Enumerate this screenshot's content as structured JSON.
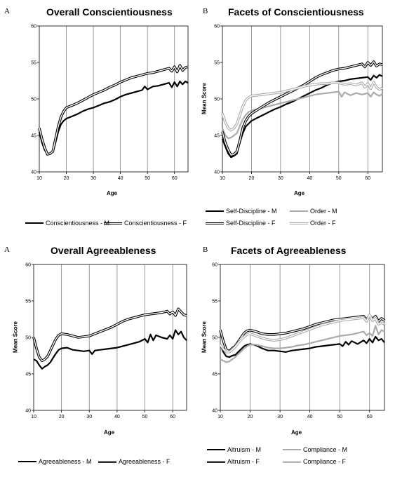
{
  "colors": {
    "male": "#000000",
    "female": "#000000",
    "male_gray": "#aaaaaa",
    "female_gray": "#aaaaaa",
    "grid": "#808080"
  },
  "chart_data": [
    {
      "panel_label": "A",
      "type": "line",
      "title": "Overall Conscientiousness",
      "xlabel": "Age",
      "ylabel": "",
      "xlim": [
        10,
        65
      ],
      "ylim": [
        40,
        60
      ],
      "xticks": [
        "10",
        "20",
        "30",
        "40",
        "50",
        "60"
      ],
      "yticks": [
        "40",
        "45",
        "50",
        "55",
        "60"
      ],
      "grid": "vertical",
      "legend_position": "bottom",
      "series": [
        {
          "name": "Conscientiousness - M",
          "style": "solid-black",
          "x": [
            10,
            11,
            12,
            13,
            14,
            15,
            16,
            17,
            18,
            19,
            20,
            22,
            24,
            26,
            28,
            30,
            32,
            34,
            36,
            38,
            40,
            42,
            44,
            46,
            48,
            49,
            50,
            52,
            54,
            56,
            58,
            59,
            60,
            61,
            62,
            63,
            64,
            65
          ],
          "y": [
            45.5,
            44,
            43,
            42.4,
            42.5,
            42.7,
            44,
            45.5,
            46.5,
            47,
            47.3,
            47.6,
            47.9,
            48.3,
            48.6,
            48.8,
            49.1,
            49.4,
            49.6,
            49.9,
            50.3,
            50.6,
            50.8,
            51.0,
            51.2,
            51.7,
            51.3,
            51.7,
            51.8,
            52.0,
            52.2,
            51.6,
            52.3,
            51.7,
            52.4,
            52.0,
            52.4,
            52.2
          ]
        },
        {
          "name": "Conscientiousness - F",
          "style": "double-black",
          "x": [
            10,
            11,
            12,
            13,
            14,
            15,
            16,
            17,
            18,
            19,
            20,
            22,
            24,
            26,
            28,
            30,
            32,
            34,
            36,
            38,
            40,
            42,
            44,
            46,
            48,
            50,
            52,
            54,
            56,
            58,
            59,
            60,
            61,
            62,
            63,
            64,
            65
          ],
          "y": [
            46,
            44.5,
            43.3,
            42.4,
            42.5,
            42.8,
            44.5,
            46.2,
            47.5,
            48.3,
            48.8,
            49.1,
            49.4,
            49.8,
            50.2,
            50.6,
            50.9,
            51.2,
            51.6,
            51.9,
            52.3,
            52.6,
            52.9,
            53.1,
            53.3,
            53.5,
            53.6,
            53.8,
            54.0,
            54.2,
            53.8,
            54.4,
            53.7,
            54.6,
            53.9,
            54.3,
            54.4
          ]
        }
      ]
    },
    {
      "panel_label": "B",
      "type": "line",
      "title": "Facets of Conscientiousness",
      "xlabel": "Age",
      "ylabel": "Mean Score",
      "xlim": [
        10,
        65
      ],
      "ylim": [
        40,
        60
      ],
      "xticks": [
        "10",
        "20",
        "30",
        "40",
        "50",
        "60"
      ],
      "yticks": [
        "40",
        "45",
        "50",
        "55",
        "60"
      ],
      "grid": "vertical",
      "legend_position": "bottom",
      "series": [
        {
          "name": "Self-Discipline - M",
          "style": "solid-black",
          "x": [
            10,
            11,
            12,
            13,
            14,
            15,
            16,
            17,
            18,
            19,
            20,
            22,
            24,
            26,
            28,
            30,
            32,
            34,
            36,
            38,
            40,
            42,
            44,
            46,
            48,
            50,
            52,
            54,
            56,
            58,
            60,
            61,
            62,
            63,
            64,
            65
          ],
          "y": [
            44.5,
            43.5,
            42.5,
            42,
            42.2,
            42.5,
            44,
            45.3,
            46.2,
            46.6,
            47,
            47.4,
            47.8,
            48.2,
            48.6,
            48.9,
            49.3,
            49.6,
            50.0,
            50.4,
            50.8,
            51.2,
            51.5,
            51.9,
            52.2,
            52.4,
            52.5,
            52.7,
            52.8,
            52.9,
            53.0,
            52.6,
            53.2,
            52.9,
            53.3,
            53.1
          ]
        },
        {
          "name": "Order - M",
          "style": "solid-gray",
          "x": [
            10,
            11,
            12,
            13,
            14,
            15,
            16,
            17,
            18,
            19,
            20,
            22,
            24,
            26,
            28,
            30,
            32,
            34,
            36,
            38,
            40,
            42,
            44,
            46,
            48,
            50,
            51,
            52,
            54,
            56,
            58,
            60,
            61,
            62,
            63,
            64,
            65
          ],
          "y": [
            46,
            45,
            44.6,
            44.7,
            45,
            45.3,
            46.3,
            47.2,
            47.8,
            48.2,
            48.4,
            48.6,
            48.8,
            49.0,
            49.2,
            49.4,
            49.6,
            49.8,
            50.0,
            50.2,
            50.4,
            50.6,
            50.7,
            50.8,
            50.9,
            51.0,
            50.3,
            50.9,
            50.5,
            50.8,
            50.6,
            50.8,
            50.3,
            50.9,
            50.6,
            50.4,
            50.7
          ]
        },
        {
          "name": "Self-Discipline - F",
          "style": "double-black",
          "x": [
            10,
            11,
            12,
            13,
            14,
            15,
            16,
            17,
            18,
            19,
            20,
            22,
            24,
            26,
            28,
            30,
            32,
            34,
            36,
            38,
            40,
            42,
            44,
            46,
            48,
            50,
            52,
            54,
            56,
            58,
            59,
            60,
            61,
            62,
            63,
            64,
            65
          ],
          "y": [
            45.5,
            44,
            43,
            42.3,
            42.4,
            42.8,
            44.3,
            46,
            47,
            47.6,
            48,
            48.5,
            49,
            49.5,
            49.9,
            50.3,
            50.7,
            51.1,
            51.5,
            51.9,
            52.4,
            52.9,
            53.3,
            53.6,
            53.9,
            54.1,
            54.2,
            54.4,
            54.6,
            54.8,
            54.4,
            55.0,
            54.6,
            55.1,
            54.5,
            54.8,
            54.7
          ]
        },
        {
          "name": "Order - F",
          "style": "double-gray",
          "x": [
            10,
            11,
            12,
            13,
            14,
            15,
            16,
            17,
            18,
            19,
            20,
            22,
            24,
            26,
            28,
            30,
            32,
            34,
            36,
            38,
            40,
            42,
            44,
            46,
            48,
            50,
            52,
            54,
            56,
            58,
            59,
            60,
            61,
            62,
            63,
            64,
            65
          ],
          "y": [
            48,
            46.8,
            46,
            45.7,
            46,
            46.6,
            47.8,
            49,
            49.8,
            50.2,
            50.4,
            50.5,
            50.6,
            50.7,
            50.8,
            50.9,
            51.1,
            51.3,
            51.5,
            51.7,
            51.9,
            52.0,
            52.1,
            52.1,
            52.2,
            52.2,
            52.0,
            52.1,
            51.9,
            52.2,
            51.6,
            52.1,
            51.4,
            52.3,
            51.6,
            51.3,
            51.5
          ]
        }
      ]
    },
    {
      "panel_label": "A",
      "type": "line",
      "title": "Overall Agreeableness",
      "xlabel": "Age",
      "ylabel": "Mean Score",
      "xlim": [
        10,
        65
      ],
      "ylim": [
        40,
        60
      ],
      "xticks": [
        "10",
        "20",
        "30",
        "40",
        "50",
        "60"
      ],
      "yticks": [
        "40",
        "45",
        "50",
        "55",
        "60"
      ],
      "grid": "vertical",
      "legend_position": "bottom",
      "series": [
        {
          "name": "Agreeableness - M",
          "style": "solid-black",
          "x": [
            10,
            11,
            12,
            13,
            14,
            15,
            16,
            17,
            18,
            19,
            20,
            22,
            24,
            26,
            28,
            30,
            31,
            32,
            34,
            36,
            38,
            40,
            42,
            44,
            46,
            48,
            50,
            51,
            52,
            53,
            54,
            56,
            58,
            59,
            60,
            61,
            62,
            63,
            64,
            65
          ],
          "y": [
            47,
            46.8,
            46.2,
            45.7,
            46,
            46.2,
            46.6,
            47.2,
            47.8,
            48.3,
            48.5,
            48.6,
            48.3,
            48.2,
            48.1,
            48.2,
            47.7,
            48.2,
            48.3,
            48.4,
            48.5,
            48.6,
            48.8,
            49.0,
            49.2,
            49.4,
            49.8,
            49.3,
            50.4,
            49.6,
            50.3,
            50.0,
            49.8,
            50.3,
            49.8,
            51.0,
            50.4,
            50.8,
            50.0,
            49.6
          ]
        },
        {
          "name": "Agreeableness - F",
          "style": "double-black",
          "x": [
            10,
            11,
            12,
            13,
            14,
            15,
            16,
            17,
            18,
            19,
            20,
            22,
            24,
            26,
            28,
            30,
            32,
            34,
            36,
            38,
            40,
            42,
            44,
            46,
            48,
            50,
            52,
            54,
            56,
            58,
            59,
            60,
            61,
            62,
            63,
            64,
            65
          ],
          "y": [
            50,
            48.5,
            47.3,
            46.8,
            47,
            47.4,
            48.2,
            49,
            49.8,
            50.3,
            50.5,
            50.4,
            50.2,
            50.0,
            50.1,
            50.2,
            50.5,
            50.8,
            51.1,
            51.4,
            51.8,
            52.2,
            52.5,
            52.7,
            52.9,
            53.1,
            53.2,
            53.3,
            53.4,
            53.6,
            53.2,
            53.5,
            53.0,
            53.9,
            53.5,
            53.1,
            53.0
          ]
        }
      ]
    },
    {
      "panel_label": "B",
      "type": "line",
      "title": "Facets of Agreeableness",
      "xlabel": "Age",
      "ylabel": "Mean Score",
      "xlim": [
        10,
        65
      ],
      "ylim": [
        40,
        60
      ],
      "xticks": [
        "10",
        "20",
        "30",
        "40",
        "50",
        "60"
      ],
      "yticks": [
        "40",
        "45",
        "50",
        "55",
        "60"
      ],
      "grid": "vertical",
      "legend_position": "bottom",
      "series": [
        {
          "name": "Altruism - M",
          "style": "solid-black",
          "x": [
            10,
            11,
            12,
            13,
            14,
            15,
            16,
            17,
            18,
            19,
            20,
            22,
            24,
            26,
            28,
            30,
            32,
            34,
            36,
            38,
            40,
            42,
            44,
            46,
            48,
            50,
            51,
            52,
            53,
            54,
            56,
            58,
            59,
            60,
            61,
            62,
            63,
            64,
            65
          ],
          "y": [
            49,
            48,
            47.4,
            47.3,
            47.5,
            47.6,
            48,
            48.4,
            48.8,
            49,
            49.1,
            48.9,
            48.5,
            48.2,
            48.2,
            48.1,
            48.0,
            48.2,
            48.3,
            48.4,
            48.5,
            48.7,
            48.8,
            48.9,
            49.0,
            49.1,
            48.8,
            49.4,
            49.0,
            49.5,
            49.1,
            49.6,
            49.2,
            49.8,
            49.3,
            50.1,
            49.6,
            49.8,
            49.3
          ]
        },
        {
          "name": "Compliance - M",
          "style": "solid-gray",
          "x": [
            10,
            11,
            12,
            13,
            14,
            15,
            16,
            17,
            18,
            19,
            20,
            22,
            24,
            26,
            28,
            30,
            32,
            34,
            36,
            38,
            40,
            42,
            44,
            46,
            48,
            50,
            52,
            54,
            56,
            58,
            59,
            60,
            61,
            62,
            63,
            64,
            65
          ],
          "y": [
            47,
            46.8,
            46.6,
            46.7,
            47,
            47.3,
            47.7,
            48.1,
            48.5,
            48.8,
            49,
            49.0,
            48.8,
            48.6,
            48.5,
            48.5,
            48.6,
            48.7,
            48.9,
            49.0,
            49.2,
            49.4,
            49.6,
            49.8,
            50.0,
            50.2,
            50.3,
            50.4,
            50.6,
            50.8,
            50.3,
            50.6,
            50.2,
            51.6,
            50.4,
            51.0,
            50.8
          ]
        },
        {
          "name": "Altruism - F",
          "style": "double-black",
          "x": [
            10,
            11,
            12,
            13,
            14,
            15,
            16,
            17,
            18,
            19,
            20,
            22,
            24,
            26,
            28,
            30,
            32,
            34,
            36,
            38,
            40,
            42,
            44,
            46,
            48,
            50,
            52,
            54,
            56,
            58,
            59,
            60,
            61,
            62,
            63,
            64,
            65
          ],
          "y": [
            51,
            49.5,
            48.3,
            48.1,
            48.5,
            48.8,
            49.4,
            50,
            50.6,
            50.9,
            51,
            50.8,
            50.5,
            50.4,
            50.4,
            50.5,
            50.6,
            50.8,
            51.0,
            51.2,
            51.5,
            51.8,
            52.0,
            52.2,
            52.4,
            52.5,
            52.6,
            52.7,
            52.8,
            52.9,
            52.4,
            53.0,
            52.5,
            52.9,
            52.2,
            52.6,
            52.3
          ]
        },
        {
          "name": "Compliance - F",
          "style": "double-gray",
          "x": [
            10,
            11,
            12,
            13,
            14,
            15,
            16,
            17,
            18,
            19,
            20,
            22,
            24,
            26,
            28,
            30,
            32,
            34,
            36,
            38,
            40,
            42,
            44,
            46,
            48,
            50,
            52,
            54,
            56,
            58,
            59,
            60,
            61,
            62,
            63,
            64,
            65
          ],
          "y": [
            49,
            48.4,
            48,
            48,
            48.3,
            48.7,
            49.2,
            49.7,
            50.1,
            50.4,
            50.5,
            50.2,
            49.9,
            49.7,
            49.6,
            49.7,
            49.9,
            50.2,
            50.5,
            50.8,
            51.1,
            51.4,
            51.7,
            51.9,
            52.1,
            52.3,
            52.4,
            52.5,
            52.6,
            52.7,
            52.2,
            53.1,
            52.3,
            52.6,
            51.8,
            52.0,
            51.8
          ]
        }
      ]
    }
  ]
}
